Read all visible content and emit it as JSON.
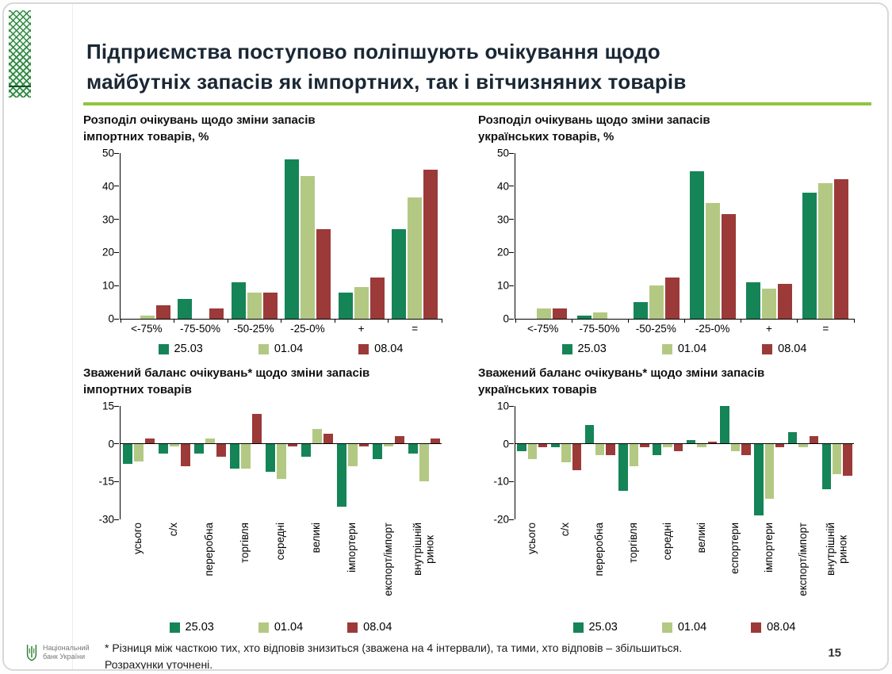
{
  "slide": {
    "title": "Підприємства поступово поліпшують очікування щодо\nмайбутніх запасів як імпортних, так і вітчизняних товарів",
    "accent_green": "#8fc43f",
    "page_number": "15",
    "footnote": "* Різниця між часткою тих, хто відповів знизиться (зважена на 4 інтервали), та тими, хто відповів – збільшиться.\nРозрахунки уточнені.",
    "logo_text": "Національний\nбанк України"
  },
  "series_colors": {
    "25.03": "#158457",
    "01.04": "#b3c983",
    "08.04": "#9b3a38"
  },
  "chart_data": [
    {
      "id": "dist-import",
      "type": "bar",
      "title": "Розподіл очікувань щодо зміни запасів\nімпортних товарів, %",
      "categories": [
        "<-75%",
        "-75-50%",
        "-50-25%",
        "-25-0%",
        "+",
        "="
      ],
      "series": [
        {
          "name": "25.03",
          "values": [
            0,
            6,
            11,
            48,
            8,
            27
          ]
        },
        {
          "name": "01.04",
          "values": [
            1,
            0,
            8,
            43,
            9.5,
            36.5
          ]
        },
        {
          "name": "08.04",
          "values": [
            4,
            3,
            8,
            27,
            12.5,
            45
          ]
        }
      ],
      "ylim": [
        0,
        50
      ],
      "yticks": [
        0,
        10,
        20,
        30,
        40,
        50
      ],
      "axis_bottom": true,
      "rotated_labels": false,
      "grid": false,
      "legend_position": "bottom"
    },
    {
      "id": "dist-ukrainian",
      "type": "bar",
      "title": "Розподіл очікувань щодо зміни запасів\nукраїнських товарів, %",
      "categories": [
        "<-75%",
        "-75-50%",
        "-50-25%",
        "-25-0%",
        "+",
        "="
      ],
      "series": [
        {
          "name": "25.03",
          "values": [
            0,
            1,
            5,
            44.5,
            11,
            38
          ]
        },
        {
          "name": "01.04",
          "values": [
            3,
            2,
            10,
            35,
            9,
            41
          ]
        },
        {
          "name": "08.04",
          "values": [
            3,
            0,
            12.5,
            31.5,
            10.5,
            42
          ]
        }
      ],
      "ylim": [
        0,
        50
      ],
      "yticks": [
        0,
        10,
        20,
        30,
        40,
        50
      ],
      "axis_bottom": true,
      "rotated_labels": false,
      "grid": false,
      "legend_position": "bottom"
    },
    {
      "id": "balance-import",
      "type": "bar",
      "title": "Зважений баланс очікувань* щодо зміни запасів\nімпортних товарів",
      "categories": [
        "усього",
        "с/х",
        "переробна",
        "торгівля",
        "середні",
        "великі",
        "імпортери",
        "експорт/імпорт",
        "внутрішній\nринок"
      ],
      "series": [
        {
          "name": "25.03",
          "values": [
            -8,
            -4,
            -4,
            -10,
            -11,
            -5,
            -25,
            -6,
            -4
          ]
        },
        {
          "name": "01.04",
          "values": [
            -7,
            -1,
            2,
            -10,
            -14,
            6,
            -9,
            -1,
            -15
          ]
        },
        {
          "name": "08.04",
          "values": [
            2,
            -9,
            -5,
            12,
            -1,
            4,
            -1,
            3,
            2
          ]
        }
      ],
      "ylim": [
        -30,
        15
      ],
      "yticks": [
        15,
        0,
        -15,
        -30
      ],
      "axis_bottom": false,
      "rotated_labels": true,
      "grid": false,
      "legend_position": "bottom"
    },
    {
      "id": "balance-ukrainian",
      "type": "bar",
      "title": "Зважений баланс очікувань* щодо зміни запасів\nукраїнських товарів",
      "categories": [
        "усього",
        "с/х",
        "переробна",
        "торгівля",
        "середні",
        "великі",
        "еспортери",
        "імпортери",
        "експорт/імпорт",
        "внутрішній\nринок"
      ],
      "series": [
        {
          "name": "25.03",
          "values": [
            -2,
            -1,
            5,
            -12.5,
            -3,
            1,
            10,
            -19,
            3,
            -12
          ]
        },
        {
          "name": "01.04",
          "values": [
            -4,
            -5,
            -3,
            -6,
            -1,
            -1,
            -2,
            -14.5,
            -1,
            -8
          ]
        },
        {
          "name": "08.04",
          "values": [
            -1,
            -7,
            -3,
            -1,
            -2,
            0.5,
            -3,
            -1,
            2,
            -8.5
          ]
        }
      ],
      "ylim": [
        -20,
        10
      ],
      "yticks": [
        10,
        0,
        -10,
        -20
      ],
      "axis_bottom": false,
      "rotated_labels": true,
      "grid": false,
      "legend_position": "bottom"
    }
  ]
}
